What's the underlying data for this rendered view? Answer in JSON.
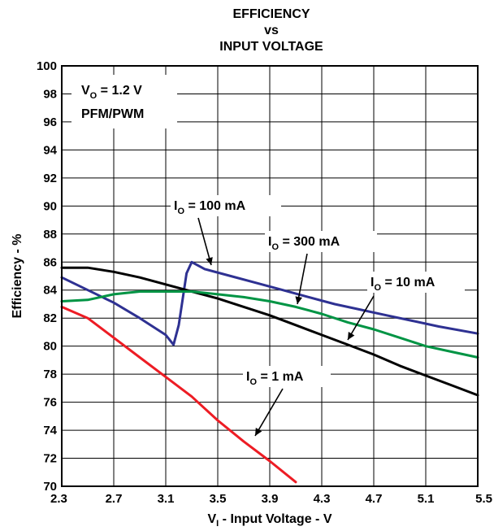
{
  "chart_data": {
    "type": "line",
    "title": [
      "EFFICIENCY",
      "vs",
      "INPUT VOLTAGE"
    ],
    "xlabel": {
      "main": "V",
      "sub": "I",
      "rest": " - Input Voltage - V"
    },
    "ylabel": "Efficiency - %",
    "xlim": [
      2.3,
      5.5
    ],
    "ylim": [
      70,
      100
    ],
    "xticks": [
      "2.3",
      "2.7",
      "3.1",
      "3.5",
      "3.9",
      "4.3",
      "4.7",
      "5.1",
      "5.5"
    ],
    "yticks": [
      "70",
      "72",
      "74",
      "76",
      "78",
      "80",
      "82",
      "84",
      "86",
      "88",
      "90",
      "92",
      "94",
      "96",
      "98",
      "100"
    ],
    "grid": true,
    "conditions": [
      {
        "main": "V",
        "sub": "O",
        "rest": " = 1.2 V"
      },
      {
        "main": "PFM/PWM",
        "sub": "",
        "rest": ""
      }
    ],
    "series": [
      {
        "label": {
          "main": "I",
          "sub": "O",
          "rest": " = 100 mA"
        },
        "color": "#2e3192",
        "x": [
          2.3,
          2.5,
          2.7,
          2.9,
          3.1,
          3.16,
          3.2,
          3.26,
          3.3,
          3.4,
          3.6,
          3.8,
          4.0,
          4.2,
          4.4,
          4.6,
          4.8,
          5.0,
          5.2,
          5.5
        ],
        "y": [
          84.9,
          84.0,
          83.1,
          82.0,
          80.8,
          80.1,
          81.5,
          85.2,
          86.0,
          85.5,
          85.0,
          84.5,
          84.0,
          83.5,
          83.0,
          82.6,
          82.2,
          81.8,
          81.4,
          80.9
        ]
      },
      {
        "label": {
          "main": "I",
          "sub": "O",
          "rest": " = 300 mA"
        },
        "color": "#000000",
        "x": [
          2.3,
          2.5,
          2.7,
          2.9,
          3.1,
          3.3,
          3.5,
          3.7,
          3.9,
          4.1,
          4.3,
          4.5,
          4.7,
          4.9,
          5.1,
          5.3,
          5.5
        ],
        "y": [
          85.6,
          85.6,
          85.3,
          84.9,
          84.4,
          83.9,
          83.4,
          82.8,
          82.2,
          81.5,
          80.8,
          80.1,
          79.4,
          78.6,
          77.9,
          77.2,
          76.5
        ]
      },
      {
        "label": {
          "main": "I",
          "sub": "O",
          "rest": " = 10 mA"
        },
        "color": "#009444",
        "x": [
          2.3,
          2.5,
          2.7,
          2.9,
          3.1,
          3.3,
          3.5,
          3.7,
          3.9,
          4.1,
          4.3,
          4.5,
          4.7,
          4.9,
          5.1,
          5.3,
          5.5
        ],
        "y": [
          83.2,
          83.3,
          83.7,
          83.9,
          83.9,
          83.9,
          83.7,
          83.5,
          83.2,
          82.8,
          82.3,
          81.7,
          81.2,
          80.6,
          80.0,
          79.6,
          79.2
        ]
      },
      {
        "label": {
          "main": "I",
          "sub": "O",
          "rest": " = 1 mA"
        },
        "color": "#ed1c24",
        "x": [
          2.3,
          2.5,
          2.7,
          2.9,
          3.1,
          3.3,
          3.5,
          3.7,
          3.9,
          4.1
        ],
        "y": [
          82.8,
          82.0,
          80.6,
          79.2,
          77.8,
          76.4,
          74.7,
          73.2,
          71.8,
          70.3
        ]
      }
    ]
  }
}
